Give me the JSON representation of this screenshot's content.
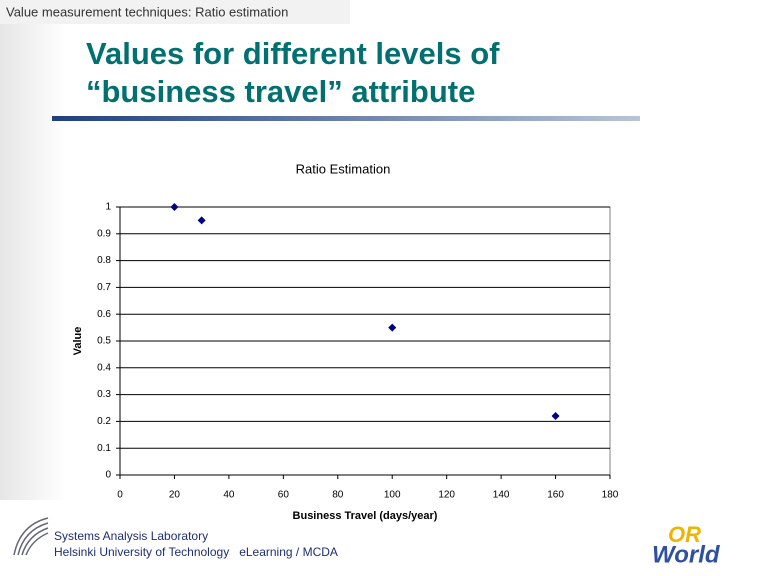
{
  "header": {
    "topic": "Value measurement techniques: Ratio estimation",
    "title_lines": [
      "Values for different levels of",
      "“business travel” attribute"
    ]
  },
  "chart_data": {
    "type": "scatter",
    "title": "Ratio Estimation",
    "x_label": "Business Travel (days/year)",
    "y_label": "Value",
    "x": [
      20,
      30,
      100,
      160
    ],
    "values": [
      1,
      0.95,
      0.55,
      0.22
    ],
    "color": "#000080",
    "xlim": [
      0,
      180
    ],
    "xticks": [
      0,
      20,
      40,
      60,
      80,
      100,
      120,
      140,
      160,
      180
    ],
    "ylim": [
      0,
      1
    ],
    "yticks": [
      0,
      0.1,
      0.2,
      0.3,
      0.4,
      0.5,
      0.6,
      0.7,
      0.8,
      0.9,
      1
    ],
    "grid": true
  },
  "footer": {
    "lines": [
      "Systems Analysis Laboratory",
      "Helsinki University of Technology   eLearning / MCDA"
    ],
    "logo": [
      "OR",
      "World"
    ]
  }
}
